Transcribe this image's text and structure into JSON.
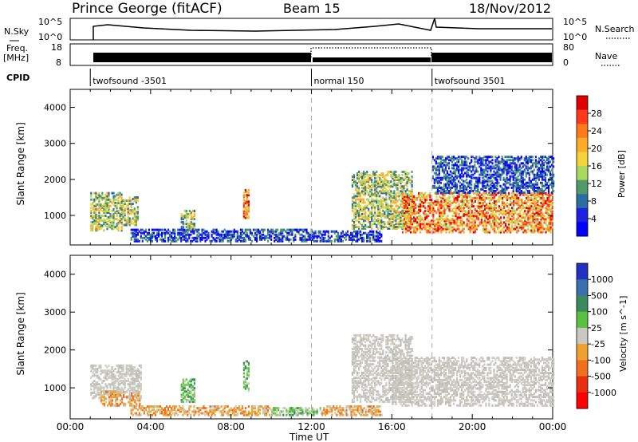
{
  "header": {
    "station": "Prince George (fitACF)",
    "beam": "Beam 15",
    "date": "18/Nov/2012"
  },
  "strip_nsky": {
    "left_label": "N.Sky",
    "left_ticks": [
      "10^5",
      "10^0"
    ],
    "right_ticks": [
      "10^5",
      "10^0"
    ],
    "right_label": "N.Search"
  },
  "strip_freq": {
    "left_label_1": "Freq.",
    "left_label_2": "[MHz]",
    "left_ticks": [
      "18",
      "8"
    ],
    "right_ticks": [
      "80",
      "0"
    ],
    "right_label": "Nave"
  },
  "cpid": {
    "label": "CPID",
    "segments": [
      {
        "start_h": 1.0,
        "label": "twofsound -3501"
      },
      {
        "start_h": 12.0,
        "label": "normal 150"
      },
      {
        "start_h": 18.0,
        "label": "twofsound 3501"
      }
    ]
  },
  "chart_data": [
    {
      "type": "heatmap",
      "quantity": "Power",
      "ylabel": "Slant Range [km]",
      "xlabel": "Time UT",
      "xlim": [
        0,
        24
      ],
      "ylim": [
        180,
        4500
      ],
      "yticks": [
        "1000",
        "2000",
        "3000",
        "4000"
      ],
      "xticks": [
        "00:00",
        "04:00",
        "08:00",
        "12:00",
        "16:00",
        "20:00",
        "00:00"
      ],
      "colorbar_label": "Power [dB]",
      "colorbar_ticks": [
        "28",
        "24",
        "20",
        "16",
        "12",
        "8",
        "4"
      ],
      "colorbar_colors": [
        "#e00000",
        "#ff3a1a",
        "#ff7a1a",
        "#ffab2a",
        "#f5d23a",
        "#a8d860",
        "#4f9a6b",
        "#2a6fa0",
        "#2020e0",
        "#0000ff"
      ],
      "regions": [
        {
          "t0": 1.0,
          "t1": 2.6,
          "r0": 550,
          "r1": 1600,
          "level": "mid"
        },
        {
          "t0": 2.6,
          "t1": 3.4,
          "r0": 700,
          "r1": 1500,
          "level": "mid"
        },
        {
          "t0": 5.5,
          "t1": 6.2,
          "r0": 550,
          "r1": 1100,
          "level": "mid"
        },
        {
          "t0": 8.6,
          "t1": 8.9,
          "r0": 900,
          "r1": 1700,
          "level": "high"
        },
        {
          "t0": 3.0,
          "t1": 12.0,
          "r0": 250,
          "r1": 600,
          "level": "low"
        },
        {
          "t0": 12.0,
          "t1": 15.5,
          "r0": 250,
          "r1": 550,
          "level": "low"
        },
        {
          "t0": 14.0,
          "t1": 17.0,
          "r0": 600,
          "r1": 2200,
          "level": "mid"
        },
        {
          "t0": 16.5,
          "t1": 24.0,
          "r0": 500,
          "r1": 1600,
          "level": "high"
        },
        {
          "t0": 18.0,
          "t1": 24.0,
          "r0": 1600,
          "r1": 2600,
          "level": "low"
        }
      ]
    },
    {
      "type": "heatmap",
      "quantity": "Velocity",
      "ylabel": "Slant Range [km]",
      "xlabel": "Time UT",
      "xlim": [
        0,
        24
      ],
      "ylim": [
        180,
        4500
      ],
      "yticks": [
        "1000",
        "2000",
        "3000",
        "4000"
      ],
      "xticks": [
        "00:00",
        "04:00",
        "08:00",
        "12:00",
        "16:00",
        "20:00",
        "00:00"
      ],
      "colorbar_label": "Velocity [m s^-1]",
      "colorbar_ticks": [
        "1000",
        "500",
        "100",
        "25",
        "-25",
        "-100",
        "-500",
        "-1000"
      ],
      "colorbar_colors": [
        "#2030c0",
        "#3a6fb0",
        "#3a8a5a",
        "#5ac040",
        "#c8c8c0",
        "#f0a030",
        "#f07020",
        "#e83010",
        "#ff0000"
      ],
      "regions": [
        {
          "t0": 1.0,
          "t1": 3.5,
          "r0": 700,
          "r1": 1600,
          "level": "ground"
        },
        {
          "t0": 1.5,
          "t1": 3.5,
          "r0": 500,
          "r1": 900,
          "level": "neg"
        },
        {
          "t0": 5.5,
          "t1": 6.2,
          "r0": 600,
          "r1": 1200,
          "level": "pos"
        },
        {
          "t0": 8.6,
          "t1": 8.9,
          "r0": 900,
          "r1": 1700,
          "level": "pos"
        },
        {
          "t0": 3.0,
          "t1": 10.0,
          "r0": 250,
          "r1": 500,
          "level": "neg"
        },
        {
          "t0": 10.0,
          "t1": 12.5,
          "r0": 250,
          "r1": 450,
          "level": "pos"
        },
        {
          "t0": 12.5,
          "t1": 15.5,
          "r0": 250,
          "r1": 500,
          "level": "neg"
        },
        {
          "t0": 14.0,
          "t1": 17.0,
          "r0": 600,
          "r1": 2400,
          "level": "ground"
        },
        {
          "t0": 16.0,
          "t1": 24.0,
          "r0": 500,
          "r1": 1800,
          "level": "ground"
        }
      ]
    }
  ]
}
